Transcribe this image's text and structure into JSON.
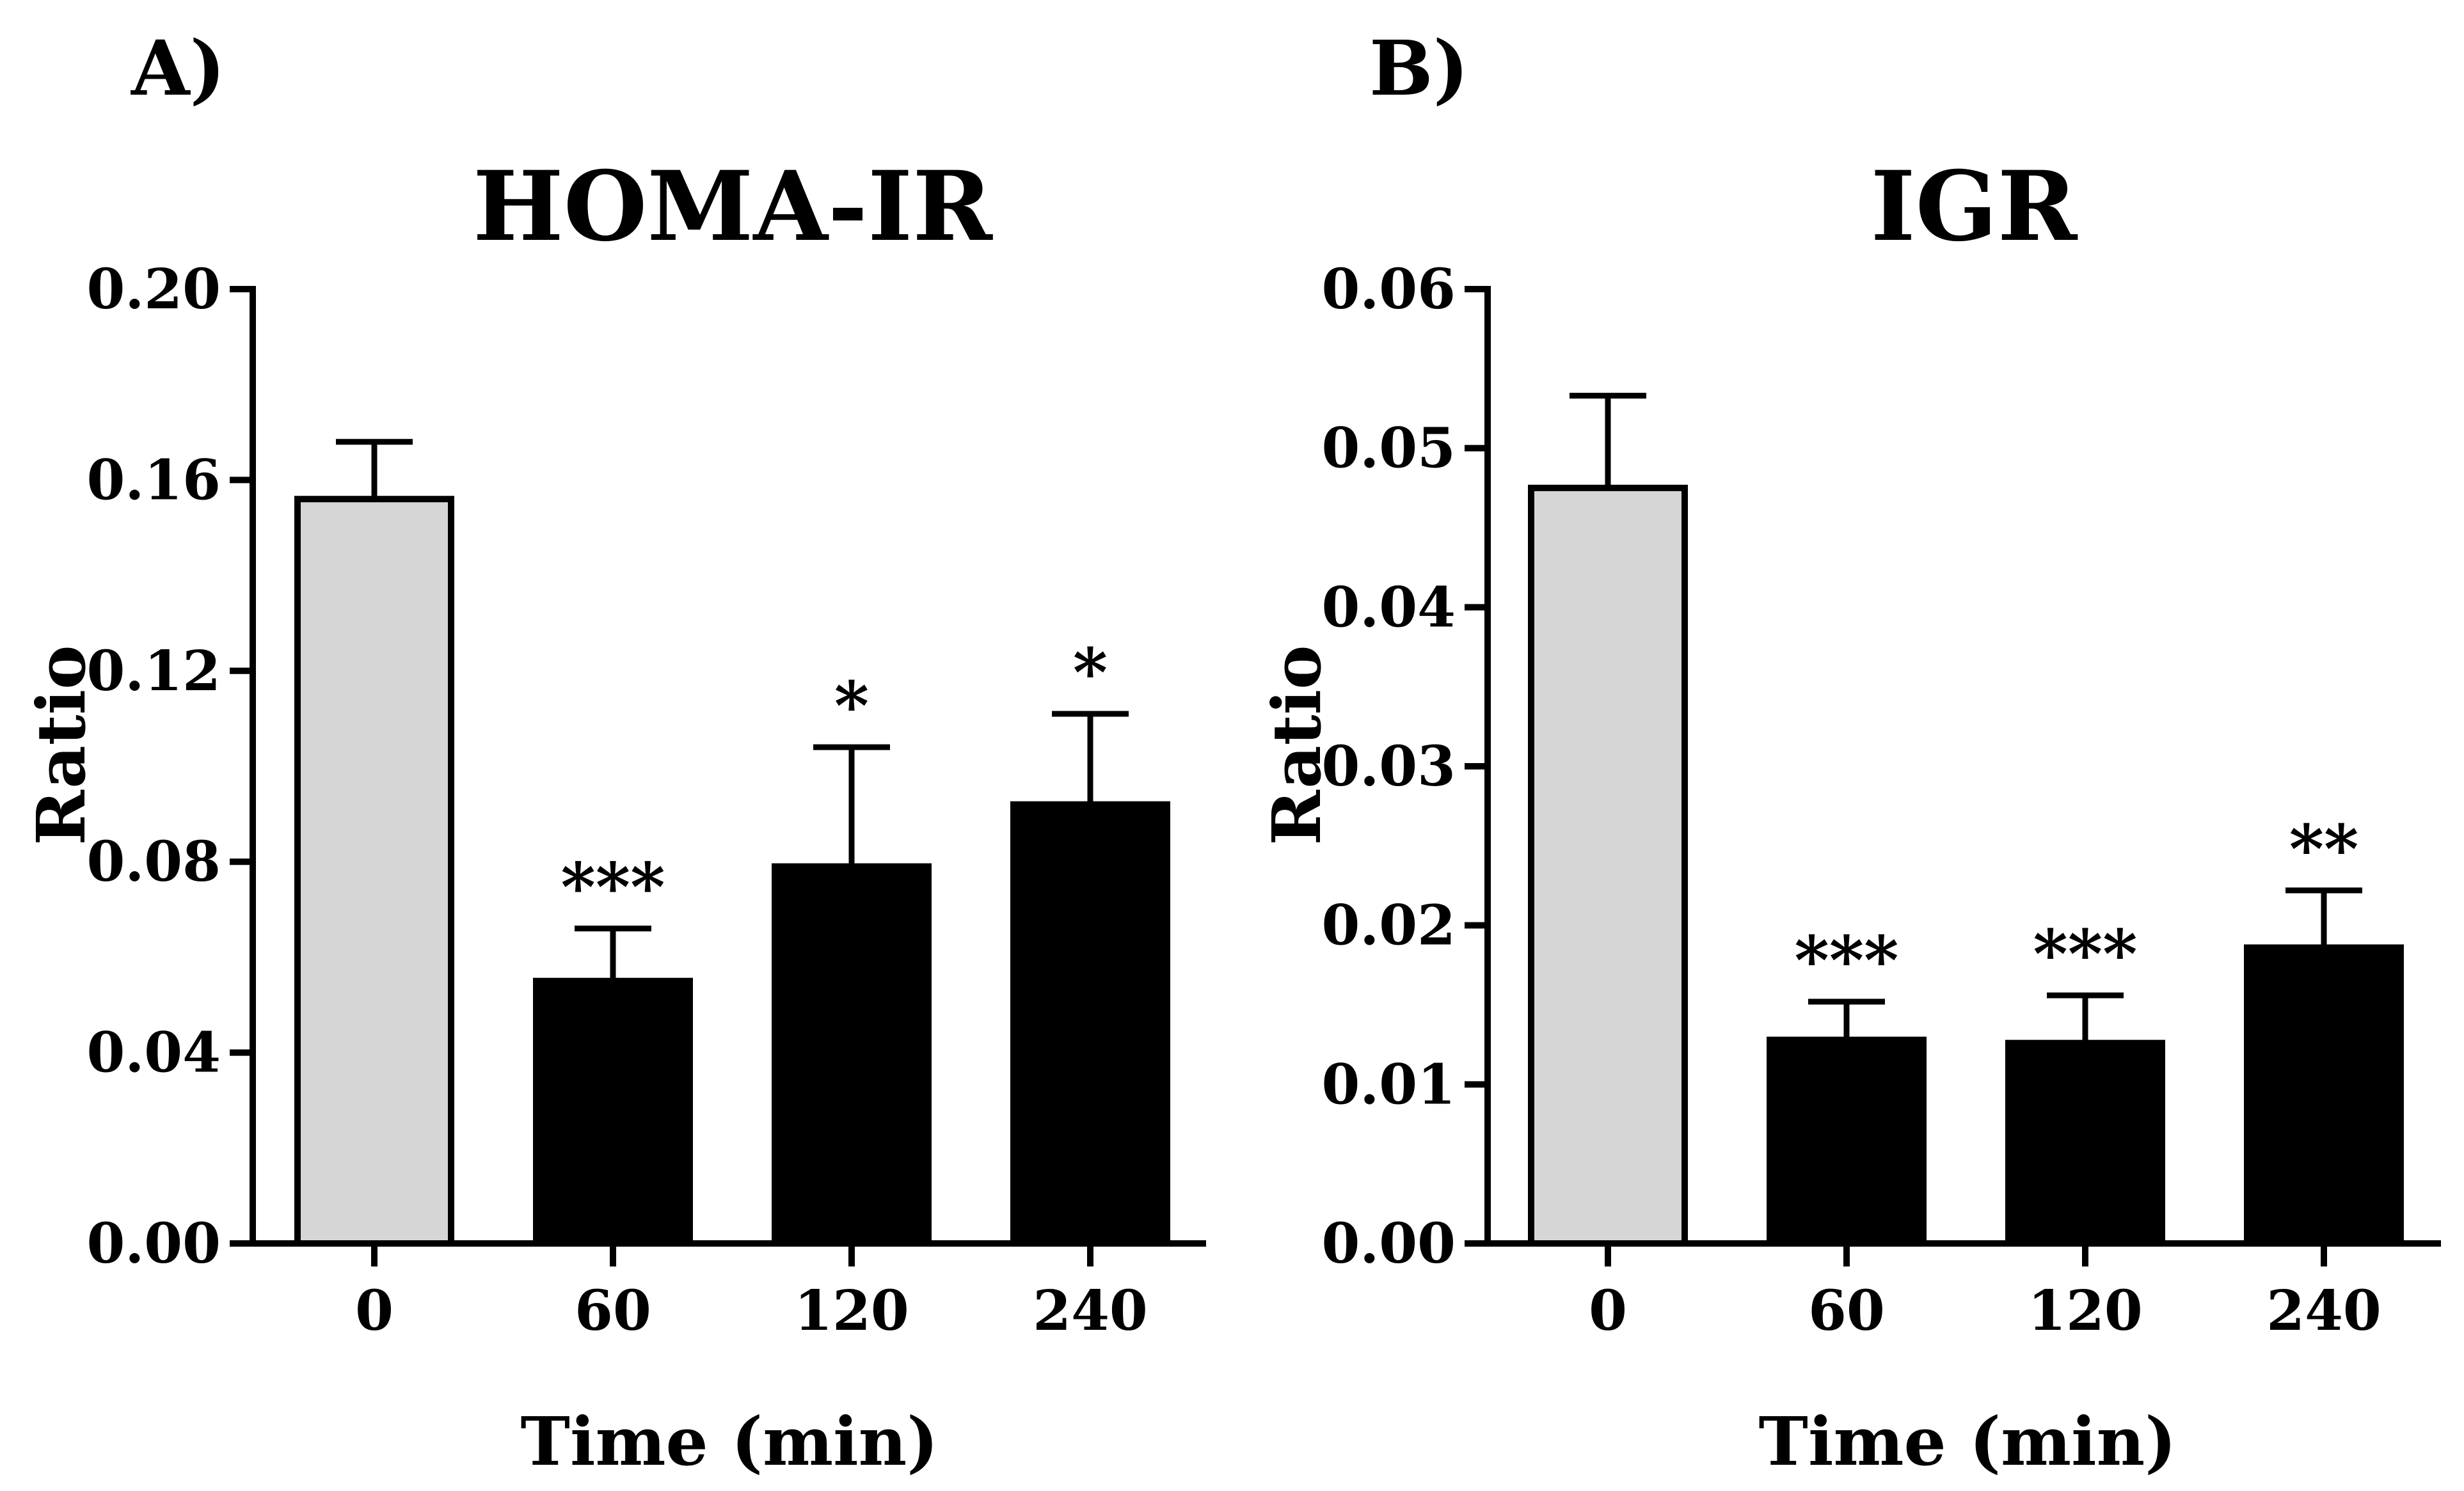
{
  "chart_data": [
    {
      "panel_label": "A)",
      "type": "bar",
      "title": "HOMA-IR",
      "xlabel": "Time (min)",
      "ylabel": "Ratio",
      "categories": [
        "0",
        "60",
        "120",
        "240"
      ],
      "values": [
        0.156,
        0.055,
        0.079,
        0.092
      ],
      "errors": [
        0.012,
        0.011,
        0.025,
        0.019
      ],
      "significance": [
        "",
        "***",
        "*",
        "*"
      ],
      "bar_colors": [
        "#d6d6d6",
        "#000000",
        "#000000",
        "#000000"
      ],
      "ylim": [
        0,
        0.2
      ],
      "yticks": [
        0,
        0.04,
        0.08,
        0.12,
        0.16,
        0.2
      ],
      "ytick_labels": [
        "0.00",
        "0.04",
        "0.08",
        "0.12",
        "0.16",
        "0.20"
      ]
    },
    {
      "panel_label": "B)",
      "type": "bar",
      "title": "IGR",
      "xlabel": "Time (min)",
      "ylabel": "Ratio",
      "categories": [
        "0",
        "60",
        "120",
        "240"
      ],
      "values": [
        0.0475,
        0.0128,
        0.0126,
        0.0186
      ],
      "errors": [
        0.0058,
        0.0024,
        0.003,
        0.0036
      ],
      "significance": [
        "",
        "***",
        "***",
        "**"
      ],
      "bar_colors": [
        "#d6d6d6",
        "#000000",
        "#000000",
        "#000000"
      ],
      "ylim": [
        0,
        0.06
      ],
      "yticks": [
        0,
        0.01,
        0.02,
        0.03,
        0.04,
        0.05,
        0.06
      ],
      "ytick_labels": [
        "0.00",
        "0.01",
        "0.02",
        "0.03",
        "0.04",
        "0.05",
        "0.06"
      ]
    }
  ]
}
